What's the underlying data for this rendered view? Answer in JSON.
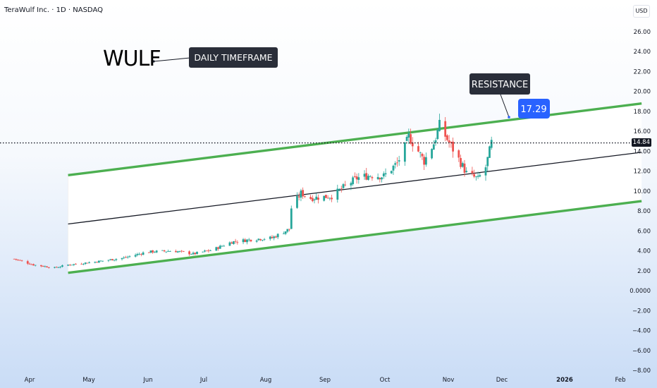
{
  "header": {
    "symbol_line": "TeraWulf Inc. · 1D · NASDAQ",
    "currency": "USD"
  },
  "annotations": {
    "ticker": "WULF",
    "timeframe": "DAILY TIMEFRAME",
    "resistance": "RESISTANCE",
    "resistance_value": "17.29"
  },
  "last_price": "14.84",
  "colors": {
    "up": "#26a69a",
    "down": "#ef5350",
    "channel": "#4caf50",
    "midline": "#131722",
    "badge": "#2962ff"
  },
  "chart_data": {
    "type": "candlestick",
    "title": "",
    "y_axis": {
      "ticks": [
        "26.00",
        "24.00",
        "22.00",
        "20.00",
        "18.00",
        "16.00",
        "14.00",
        "12.00",
        "10.00",
        "8.00",
        "6.00",
        "4.00",
        "2.00",
        "0.0000",
        "−2.00",
        "−4.00",
        "−6.00",
        "−8.00"
      ],
      "range": [
        -8,
        26
      ]
    },
    "x_axis": {
      "ticks": [
        "Apr",
        "May",
        "Jun",
        "Jul",
        "Aug",
        "Sep",
        "Oct",
        "Nov",
        "Dec",
        "2026",
        "Feb"
      ]
    },
    "price_series": [
      [
        "2025-03-24",
        3.2
      ],
      [
        "2025-04-03",
        2.6
      ],
      [
        "2025-04-14",
        2.3
      ],
      [
        "2025-04-21",
        2.6
      ],
      [
        "2025-05-05",
        2.9
      ],
      [
        "2025-05-20",
        3.3
      ],
      [
        "2025-06-01",
        3.9
      ],
      [
        "2025-06-15",
        4.0
      ],
      [
        "2025-06-25",
        3.7
      ],
      [
        "2025-07-05",
        4.1
      ],
      [
        "2025-07-15",
        4.9
      ],
      [
        "2025-07-28",
        5.2
      ],
      [
        "2025-08-05",
        5.3
      ],
      [
        "2025-08-14",
        6.2
      ],
      [
        "2025-08-15",
        8.3
      ],
      [
        "2025-08-18",
        9.2
      ],
      [
        "2025-08-20",
        9.8
      ],
      [
        "2025-08-25",
        9.3
      ],
      [
        "2025-09-05",
        9.5
      ],
      [
        "2025-09-12",
        10.5
      ],
      [
        "2025-09-18",
        11.3
      ],
      [
        "2025-09-25",
        11.6
      ],
      [
        "2025-10-02",
        11.5
      ],
      [
        "2025-10-09",
        12.8
      ],
      [
        "2025-10-13",
        14.4
      ],
      [
        "2025-10-15",
        15.5
      ],
      [
        "2025-10-20",
        14.0
      ],
      [
        "2025-10-23",
        13.0
      ],
      [
        "2025-10-28",
        14.8
      ],
      [
        "2025-10-31",
        16.6
      ],
      [
        "2025-11-04",
        15.2
      ],
      [
        "2025-11-10",
        13.2
      ],
      [
        "2025-11-14",
        11.8
      ],
      [
        "2025-11-20",
        11.2
      ],
      [
        "2025-11-24",
        12.4
      ],
      [
        "2025-11-27",
        14.84
      ]
    ],
    "lines": [
      {
        "name": "channel upper",
        "color": "#4caf50",
        "points": [
          [
            "2025-04-21",
            11.6
          ],
          [
            "2026-02-13",
            18.8
          ]
        ]
      },
      {
        "name": "channel middle",
        "color": "#131722",
        "points": [
          [
            "2025-04-21",
            6.7
          ],
          [
            "2026-02-13",
            13.9
          ]
        ]
      },
      {
        "name": "channel lower",
        "color": "#4caf50",
        "points": [
          [
            "2025-04-21",
            1.8
          ],
          [
            "2026-02-13",
            9.0
          ]
        ]
      }
    ],
    "last_price": 14.84,
    "resistance": 17.29,
    "grid": false,
    "legend": "none"
  }
}
